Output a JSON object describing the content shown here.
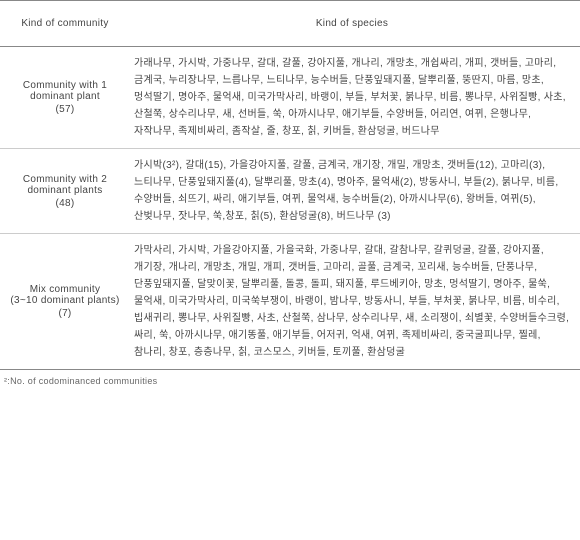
{
  "header": {
    "col1": "Kind of community",
    "col2": "Kind of species"
  },
  "rows": [
    {
      "label_line1": "Community with 1",
      "label_line2": "dominant plant",
      "count": "(57)",
      "species": "가래나무, 가시박, 가중나무, 갈대, 갈풀, 강아지풀, 개나리, 개망초, 개쉽싸리, 개피, 갯버들, 고마리, 금계국, 누리장나무, 느릅나무, 느티나무, 능수버들, 단풍잎돼지풀, 달뿌리풀, 뚱딴지, 마름, 망초, 멍석딸기, 명아주, 물억새, 미국가막사리, 바랭이, 부들, 부처꽃, 붉나무, 비름, 뽕나무, 사위질빵, 사초, 산철쭉, 상수리나무, 새, 선버들, 쑥, 아까시나무, 애기부들, 수양버들, 어리연, 여뀌, 은행나무, 자작나무, 족제비싸리, 좀작살, 줄, 창포, 칡, 키버들, 환삼덩굴, 버드나무"
    },
    {
      "label_line1": "Community with 2",
      "label_line2": "dominant plants",
      "count": "(48)",
      "species": "가시박(3²), 갈대(15), 가을강아지풀, 갈풀, 금계국, 개기장, 개밀, 개망초, 갯버들(12), 고마리(3), 느티나무, 단풍잎돼지풀(4), 달뿌리풀, 망초(4), 명아주, 물억새(2), 방동사니, 부들(2), 붉나무, 비름, 수양버들, 쇠뜨기, 싸리, 애기부들, 여뀌, 물억새, 능수버들(2), 아까시나무(6), 왕버들, 여뀌(5), 산벚나무, 잣나무, 쑥,창포, 칡(5), 환삼덩굴(8), 버드나무 (3)"
    },
    {
      "label_line1": "Mix community",
      "label_line2": "(3~10 dominant plants)",
      "count": "(7)",
      "species": "가막사리, 가시박, 가을강아지풀, 가을국화, 가중나무, 갈대, 갈참나무, 갈퀴덩굴, 갈풀, 강아지풀, 개기장, 개나리, 개망초, 개밀, 개피, 갯버들, 고마리, 골풀, 금계국, 꼬리새, 능수버들, 단풍나무, 단풍잎돼지풀, 달맞이꽃, 달뿌리풀, 돌콩, 돌피, 돼지풀, 루드베키아, 망초, 멍석딸기, 명아주, 물쑥, 물억새, 미국가막사리, 미국쑥부쟁이, 바랭이, 밤나무, 방동사니, 부들, 부처꽃, 붉나무, 비름, 비수리, 빕새귀리, 뽕나무, 사위질빵, 사초, 산철쭉, 삼나무, 상수리나무, 새, 소리쟁이, 쇠별꽃, 수양버들수크령, 싸리, 쑥, 아까시나무, 애기똥풀, 애기부들, 어저귀, 억새, 여뀌, 족제비싸리, 중국굴피나무, 찔레, 참나리, 창포, 층층나무, 칡, 코스모스, 키버들, 토끼풀, 환삼덩굴"
    }
  ],
  "footnote": "²:No. of codominanced communities"
}
